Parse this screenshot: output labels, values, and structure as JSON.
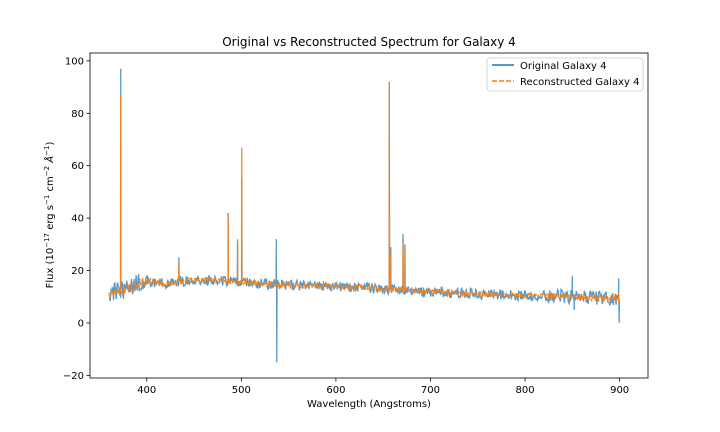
{
  "chart_data": {
    "type": "line",
    "title": "Original vs Reconstructed Spectrum for Galaxy 4",
    "xlabel": "Wavelength (Angstroms)",
    "ylabel_parts": {
      "prefix": "Flux (10",
      "exp1": "−17",
      "mid1": " erg s",
      "exp2": "−1",
      "mid2": " cm",
      "exp3": "−2",
      "mid3": " Å",
      "exp4": "−1",
      "suffix": ")"
    },
    "xlim": [
      340,
      930
    ],
    "ylim": [
      -21,
      103
    ],
    "xticks": [
      400,
      500,
      600,
      700,
      800,
      900
    ],
    "yticks": [
      -20,
      0,
      20,
      40,
      60,
      80,
      100
    ],
    "grid": false,
    "legend_position": "top-right",
    "series": [
      {
        "name": "Original Galaxy 4",
        "color": "#1f77b4",
        "style": "solid",
        "noise": 2.0,
        "spikes": [
          [
            372.5,
            97
          ],
          [
            434,
            25
          ],
          [
            486,
            42
          ],
          [
            496,
            31
          ],
          [
            500.5,
            55
          ],
          [
            537,
            32
          ],
          [
            537.5,
            -15
          ],
          [
            656.5,
            92
          ],
          [
            658,
            29
          ],
          [
            671,
            34
          ],
          [
            673,
            30
          ],
          [
            850,
            18
          ],
          [
            852,
            5
          ],
          [
            899,
            17
          ],
          [
            899.5,
            0
          ]
        ]
      },
      {
        "name": "Reconstructed Galaxy 4",
        "color": "#ff7f0e",
        "style": "dashed",
        "noise": 1.0,
        "spikes": [
          [
            372.5,
            87
          ],
          [
            434,
            23
          ],
          [
            486,
            41
          ],
          [
            496,
            32
          ],
          [
            500.5,
            67
          ],
          [
            537,
            14
          ],
          [
            587,
            16
          ],
          [
            656.5,
            92
          ],
          [
            658,
            27
          ],
          [
            671,
            31
          ],
          [
            673,
            28
          ],
          [
            899,
            12
          ]
        ]
      }
    ],
    "continuum": [
      [
        360,
        11
      ],
      [
        370,
        12
      ],
      [
        380,
        13
      ],
      [
        390,
        15
      ],
      [
        400,
        16
      ],
      [
        420,
        15
      ],
      [
        440,
        16
      ],
      [
        460,
        16.5
      ],
      [
        480,
        16
      ],
      [
        500,
        15.5
      ],
      [
        540,
        14.5
      ],
      [
        600,
        14
      ],
      [
        650,
        13
      ],
      [
        700,
        12
      ],
      [
        750,
        11
      ],
      [
        800,
        10.5
      ],
      [
        850,
        10
      ],
      [
        900,
        9
      ]
    ]
  }
}
